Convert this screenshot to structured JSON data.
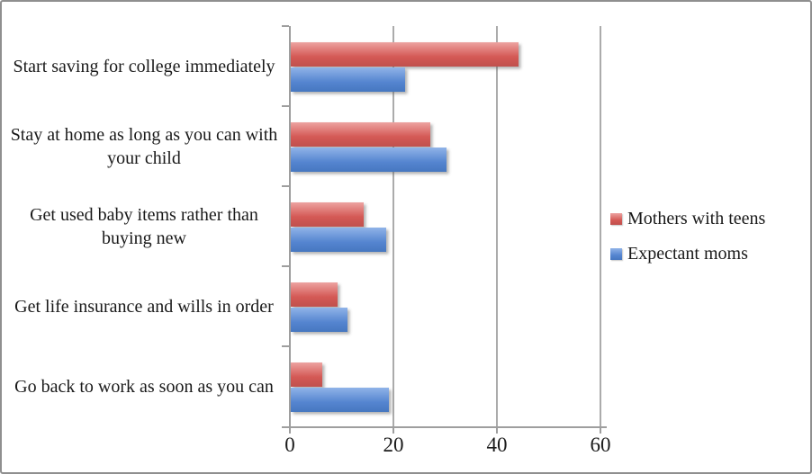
{
  "chart_data": {
    "type": "bar",
    "orientation": "horizontal",
    "title": "",
    "xlabel": "",
    "ylabel": "",
    "categories": [
      "Start saving for college immediately",
      "Stay at home as long as you can with your child",
      "Get used baby items rather than buying new",
      "Get life insurance and wills in order",
      "Go back to work as soon as you can"
    ],
    "series": [
      {
        "name": "Mothers with teens",
        "color": "#C0504D",
        "gradient": [
          "#EDA3A1",
          "#D45955",
          "#C0504D"
        ],
        "values": [
          44,
          27,
          14,
          9,
          6
        ]
      },
      {
        "name": "Expectant moms",
        "color": "#4F81BD",
        "gradient": [
          "#90B3E8",
          "#5585D0",
          "#4677C0"
        ],
        "values": [
          22,
          30,
          18.5,
          11,
          19
        ]
      }
    ],
    "xlim": [
      0,
      60
    ],
    "xticks": [
      "0",
      "20",
      "40",
      "60"
    ],
    "grid": true,
    "legend_position": "right-middle"
  },
  "style_colors": {
    "axis": "#9e9e9e",
    "gridline": "#ababab",
    "frame_border": "#8f8f8f",
    "text": "#1a1a1a",
    "background": "#ffffff"
  }
}
